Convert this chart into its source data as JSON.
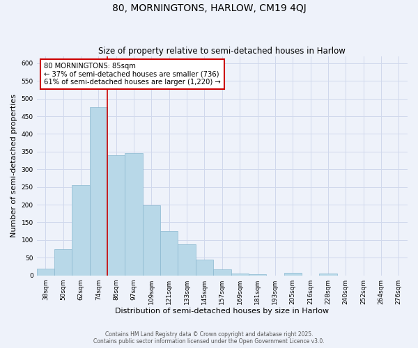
{
  "title": "80, MORNINGTONS, HARLOW, CM19 4QJ",
  "subtitle": "Size of property relative to semi-detached houses in Harlow",
  "xlabel": "Distribution of semi-detached houses by size in Harlow",
  "ylabel": "Number of semi-detached properties",
  "bin_labels": [
    "38sqm",
    "50sqm",
    "62sqm",
    "74sqm",
    "86sqm",
    "97sqm",
    "109sqm",
    "121sqm",
    "133sqm",
    "145sqm",
    "157sqm",
    "169sqm",
    "181sqm",
    "193sqm",
    "205sqm",
    "216sqm",
    "228sqm",
    "240sqm",
    "252sqm",
    "264sqm",
    "276sqm"
  ],
  "bar_values": [
    20,
    75,
    255,
    475,
    340,
    345,
    198,
    125,
    88,
    45,
    17,
    5,
    3,
    0,
    8,
    0,
    5,
    0,
    0,
    0,
    0
  ],
  "bar_color": "#b8d8e8",
  "bar_edge_color": "#8ab8d0",
  "vline_x": 4,
  "vline_color": "#cc0000",
  "annotation_title": "80 MORNINGTONS: 85sqm",
  "annotation_line1": "← 37% of semi-detached houses are smaller (736)",
  "annotation_line2": "61% of semi-detached houses are larger (1,220) →",
  "annotation_box_facecolor": "#ffffff",
  "annotation_box_edge": "#cc0000",
  "ylim": [
    0,
    620
  ],
  "yticks": [
    0,
    50,
    100,
    150,
    200,
    250,
    300,
    350,
    400,
    450,
    500,
    550,
    600
  ],
  "footer1": "Contains HM Land Registry data © Crown copyright and database right 2025.",
  "footer2": "Contains public sector information licensed under the Open Government Licence v3.0.",
  "bg_color": "#eef2fa",
  "grid_color": "#d0d8ec",
  "title_fontsize": 10,
  "subtitle_fontsize": 8.5,
  "ylabel_fontsize": 8,
  "xlabel_fontsize": 8,
  "tick_fontsize": 6.5,
  "annot_fontsize": 7.2,
  "footer_fontsize": 5.5
}
